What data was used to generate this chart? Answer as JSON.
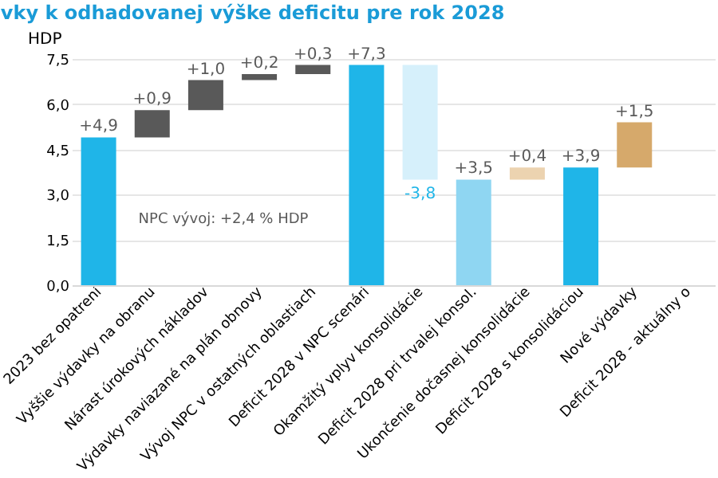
{
  "chart_data": {
    "type": "bar",
    "title": "vky k odhadovanej výške deficitu pre rok 2028",
    "ylabel": "HDP",
    "categories": [
      "2023 bez opatrení",
      "Vyššie výdavky na obranu",
      "Nárast úrokových nákladov",
      "Výdavky naviazané na plán obnovy",
      "Vývoj NPC v ostatných oblastiach",
      "Deficit 2028 v NPC scenári",
      "Okamžitý vplyv konsolidácie",
      "Deficit 2028 pri trvalej konsol.",
      "Ukončenie dočasnej konsolidácie",
      "Deficit 2028 s konsolidáciou",
      "Nové výdavky",
      "Deficit 2028 - aktuálny o"
    ],
    "values": [
      4.9,
      0.9,
      1.0,
      0.2,
      0.3,
      7.3,
      -3.8,
      3.5,
      0.4,
      3.9,
      1.5,
      null
    ],
    "base": [
      0,
      4.9,
      5.8,
      6.8,
      7.0,
      0,
      7.3,
      0,
      3.5,
      0,
      3.9,
      null
    ],
    "colors": [
      "#1fb5e8",
      "#595959",
      "#595959",
      "#595959",
      "#595959",
      "#1fb5e8",
      "#d6f0fb",
      "#8fd6f2",
      "#ecd3b0",
      "#1fb5e8",
      "#d6a96b",
      "#1fb5e8"
    ],
    "value_labels": [
      "+4,9",
      "+0,9",
      "+1,0",
      "+0,2",
      "+0,3",
      "+7,3",
      "-3,8",
      "+3,5",
      "+0,4",
      "+3,9",
      "+1,5",
      null
    ],
    "annotations": [
      "NPC vývoj: +2,4 % HDP"
    ],
    "ylim": [
      0,
      7.5
    ],
    "yticks": [
      {
        "value": 0,
        "label": "0,0"
      },
      {
        "value": 1.5,
        "label": "1,5"
      },
      {
        "value": 3,
        "label": "3,0"
      },
      {
        "value": 4.5,
        "label": "4,5"
      },
      {
        "value": 6,
        "label": "6,0"
      },
      {
        "value": 7.5,
        "label": "7,5"
      }
    ],
    "grid": "y"
  }
}
